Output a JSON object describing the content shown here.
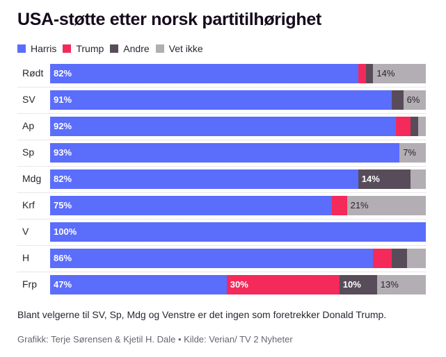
{
  "chart_data": {
    "type": "bar",
    "orientation": "horizontal-stacked-100",
    "title": "USA-støtte etter norsk partitilhørighet",
    "xlabel": "",
    "ylabel": "",
    "xlim": [
      0,
      100
    ],
    "grid": false,
    "legend_position": "top-left",
    "categories": [
      "Rødt",
      "SV",
      "Ap",
      "Sp",
      "Mdg",
      "Krf",
      "V",
      "H",
      "Frp"
    ],
    "series": [
      {
        "name": "Harris",
        "color": "#5b6dfb",
        "values": [
          82,
          91,
          92,
          93,
          82,
          75,
          100,
          86,
          47
        ]
      },
      {
        "name": "Trump",
        "color": "#f32a5a",
        "values": [
          2,
          0,
          4,
          0,
          0,
          4,
          0,
          5,
          30
        ]
      },
      {
        "name": "Andre",
        "color": "#584c5a",
        "values": [
          2,
          3,
          2,
          0,
          14,
          0,
          0,
          4,
          10
        ]
      },
      {
        "name": "Vet ikke",
        "color": "#b3aeb3",
        "values": [
          14,
          6,
          2,
          7,
          4,
          21,
          0,
          5,
          13
        ]
      }
    ],
    "data_labels": [
      [
        "82%",
        "",
        "",
        "14%"
      ],
      [
        "91%",
        "",
        "",
        "6%"
      ],
      [
        "92%",
        "",
        "",
        ""
      ],
      [
        "93%",
        "",
        "",
        "7%"
      ],
      [
        "82%",
        "",
        "14%",
        ""
      ],
      [
        "75%",
        "",
        "",
        "21%"
      ],
      [
        "100%",
        "",
        "",
        ""
      ],
      [
        "86%",
        "",
        "",
        ""
      ],
      [
        "47%",
        "30%",
        "10%",
        "13%"
      ]
    ]
  },
  "note": "Blant velgerne til SV, Sp, Mdg og Venstre er det ingen som foretrekker Donald Trump.",
  "credit": "Grafikk: Terje Sørensen & Kjetil H. Dale • Kilde: Verian/ TV 2 Nyheter"
}
